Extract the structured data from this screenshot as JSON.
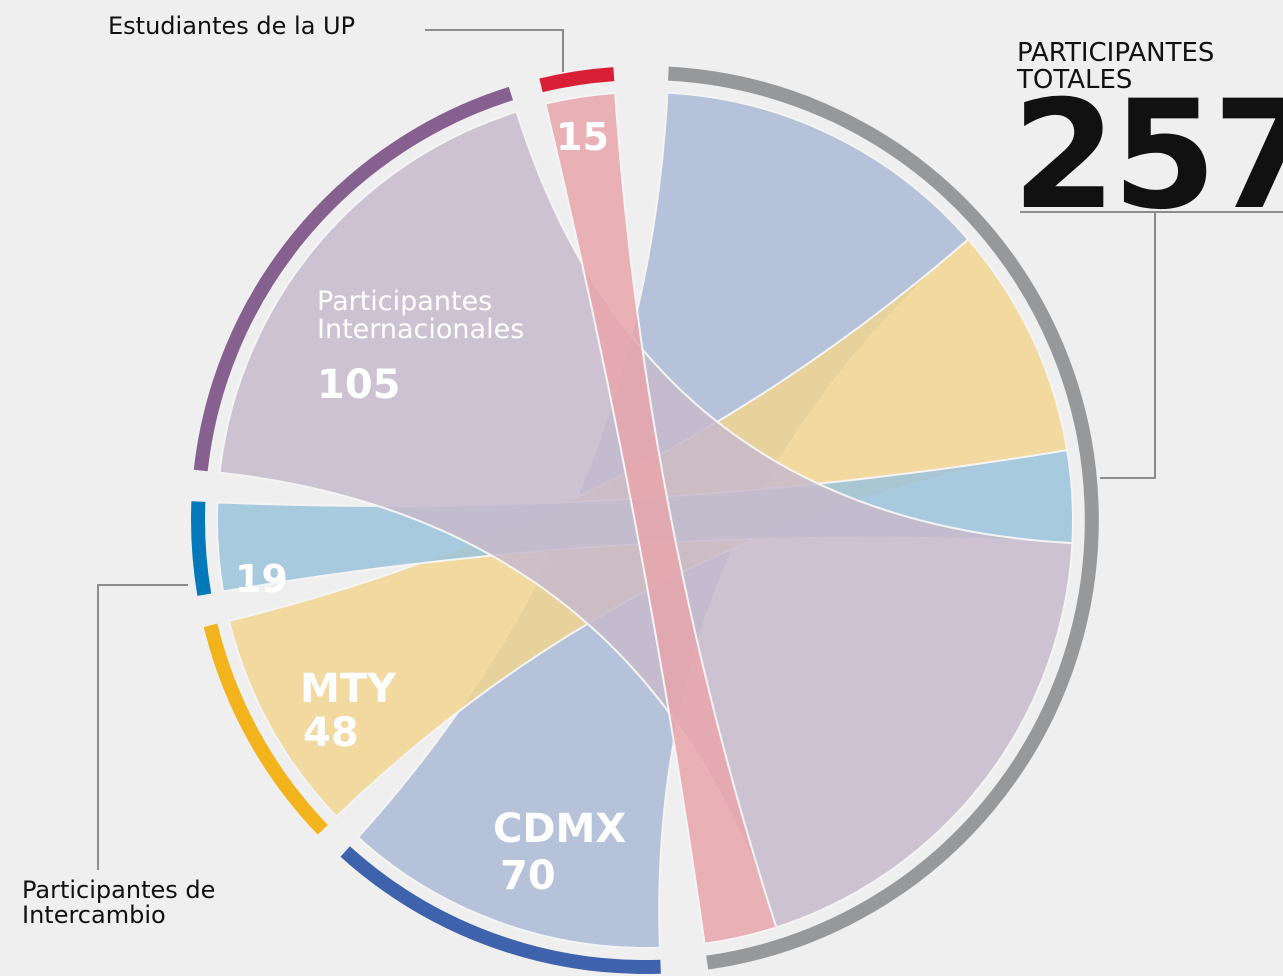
{
  "chart_data": {
    "type": "chord",
    "total_label": "PARTICIPANTES TOTALES",
    "total": 257,
    "total_color": "#97989a",
    "series": [
      {
        "name": "CDMX",
        "value": 70,
        "color": "#3f62ad",
        "ribbon_color": "#abbad6"
      },
      {
        "name": "MTY",
        "value": 48,
        "color": "#f2b31c",
        "ribbon_color": "#f1d590"
      },
      {
        "name": "Participantes de Intercambio",
        "value": 19,
        "color": "#0479b9",
        "ribbon_color": "#9bc3dc"
      },
      {
        "name": "Participantes Internacionales",
        "value": 105,
        "color": "#86618f",
        "ribbon_color": "#c7bacb"
      },
      {
        "name": "Estudiantes de la UP",
        "value": 15,
        "color": "#d91f35",
        "ribbon_color": "#e8a5ac"
      }
    ]
  }
}
